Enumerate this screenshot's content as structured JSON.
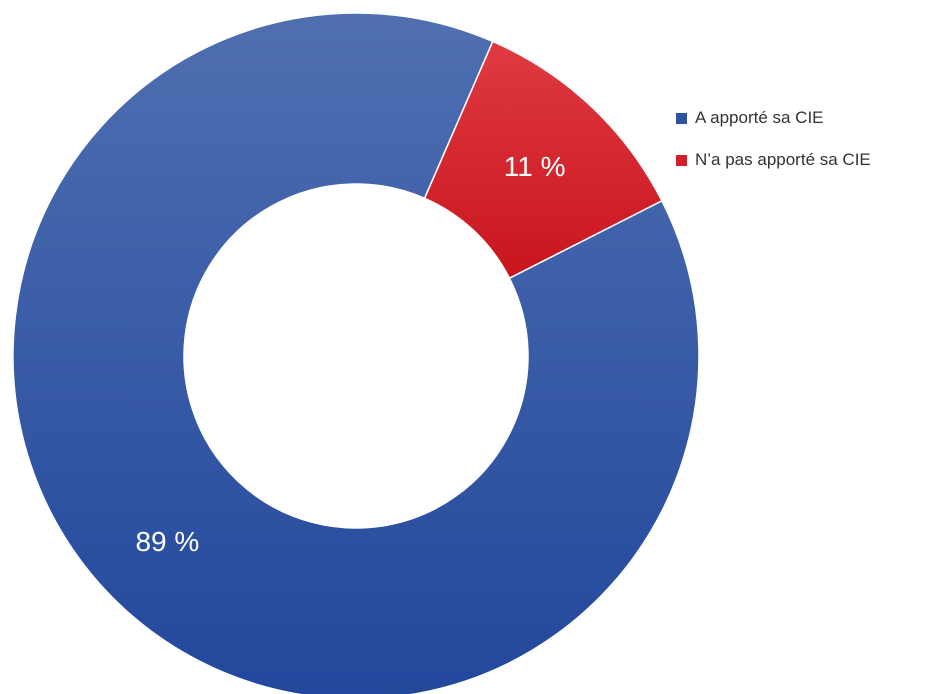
{
  "chart_data": {
    "type": "pie",
    "variant": "donut",
    "title": "",
    "categories": [
      "A apporté sa CIE",
      "N’a pas apporté sa CIE"
    ],
    "values": [
      89,
      11
    ],
    "value_labels": [
      "89 %",
      "11 %"
    ],
    "colors": [
      "#2F52A0",
      "#D0202A"
    ],
    "legend_position": "right"
  },
  "legend": {
    "items": [
      {
        "label": "A apporté sa CIE",
        "color": "#2F52A0"
      },
      {
        "label": "N’a pas apporté sa CIE",
        "color": "#D0202A"
      }
    ]
  }
}
